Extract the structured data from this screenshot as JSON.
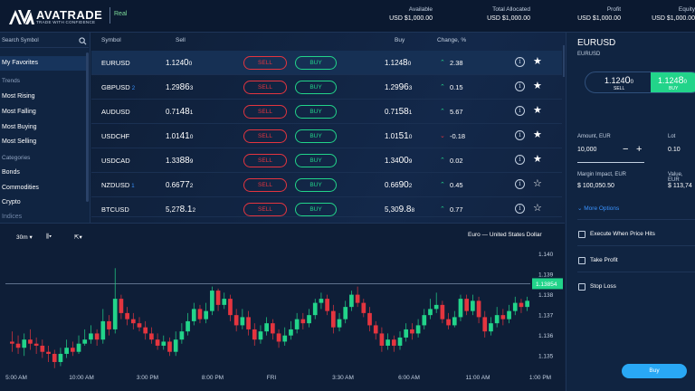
{
  "header": {
    "brand": "AVATRADE",
    "tagline": "TRADE WITH CONFIDENCE",
    "account_type": "Real",
    "stats": [
      {
        "label": "Available",
        "value": "USD $1,000.00"
      },
      {
        "label": "Total Allocated",
        "value": "USD $1,000.00"
      },
      {
        "label": "Profit",
        "value": "USD $1,000.00"
      },
      {
        "label": "Equity",
        "value": "USD $1,000.00"
      }
    ]
  },
  "sidebar": {
    "search_placeholder": "Search Symbol",
    "favorites": "My Favorites",
    "trends_heading": "Trends",
    "trends": [
      "Most Rising",
      "Most Falling",
      "Most Buying",
      "Most Selling"
    ],
    "categories_heading": "Categories",
    "categories": [
      "Bonds",
      "Commodities",
      "Crypto",
      "Indices"
    ]
  },
  "watchlist": {
    "columns": {
      "symbol": "Symbol",
      "sell": "Sell",
      "buy": "Buy",
      "change": "Change, %"
    },
    "sell_label": "SELL",
    "buy_label": "BUY",
    "rows": [
      {
        "symbol": "EURUSD",
        "badge": "",
        "sell_a": "1.124",
        "sell_b": "0",
        "sell_c": "0",
        "buy_a": "1.124",
        "buy_b": "8",
        "buy_c": "0",
        "change": "2.38",
        "dir": "up",
        "starred": true
      },
      {
        "symbol": "GBPUSD",
        "badge": "2",
        "sell_a": "1.29",
        "sell_b": "86",
        "sell_c": "3",
        "buy_a": "1.29",
        "buy_b": "96",
        "buy_c": "3",
        "change": "0.15",
        "dir": "up",
        "starred": true
      },
      {
        "symbol": "AUDUSD",
        "badge": "",
        "sell_a": "0.71",
        "sell_b": "48",
        "sell_c": "1",
        "buy_a": "0.71",
        "buy_b": "58",
        "buy_c": "1",
        "change": "5.67",
        "dir": "up",
        "starred": true
      },
      {
        "symbol": "USDCHF",
        "badge": "",
        "sell_a": "1.01",
        "sell_b": "41",
        "sell_c": "0",
        "buy_a": "1.01",
        "buy_b": "51",
        "buy_c": "0",
        "change": "-0.18",
        "dir": "down",
        "starred": true
      },
      {
        "symbol": "USDCAD",
        "badge": "",
        "sell_a": "1.33",
        "sell_b": "88",
        "sell_c": "9",
        "buy_a": "1.34",
        "buy_b": "00",
        "buy_c": "9",
        "change": "0.02",
        "dir": "up",
        "starred": true
      },
      {
        "symbol": "NZDUSD",
        "badge": "1",
        "sell_a": "0.66",
        "sell_b": "77",
        "sell_c": "2",
        "buy_a": "0.66",
        "buy_b": "90",
        "buy_c": "2",
        "change": "0.45",
        "dir": "up",
        "starred": false
      },
      {
        "symbol": "BTCUSD",
        "badge": "",
        "sell_a": "5,27",
        "sell_b": "8.1",
        "sell_c": "2",
        "buy_a": "5,30",
        "buy_b": "9.8",
        "buy_c": "8",
        "change": "0.77",
        "dir": "up",
        "starred": false
      }
    ]
  },
  "chart": {
    "timeframe": "30m",
    "title": "Euro — United States Dollar",
    "current_price": "1.13854",
    "colors": {
      "up": "#22d48a",
      "down": "#e4353f"
    }
  },
  "chart_data": {
    "type": "candlestick",
    "title": "Euro — United States Dollar",
    "x_ticks": [
      "5:00 AM",
      "10:00 AM",
      "3:00 PM",
      "8:00 PM",
      "FRI",
      "3:30 AM",
      "6:00 AM",
      "11:00 AM",
      "1:00 PM"
    ],
    "y_ticks": [
      "1.140",
      "1.139",
      "1.138",
      "1.137",
      "1.136",
      "1.135"
    ],
    "ylim": [
      1.1343,
      1.1406
    ],
    "last_price": 1.13854,
    "candles": [
      {
        "o": 1.1357,
        "c": 1.1356,
        "h": 1.1362,
        "l": 1.1352
      },
      {
        "o": 1.1356,
        "c": 1.1354,
        "h": 1.136,
        "l": 1.1351
      },
      {
        "o": 1.1354,
        "c": 1.1358,
        "h": 1.1361,
        "l": 1.135
      },
      {
        "o": 1.1358,
        "c": 1.1356,
        "h": 1.1363,
        "l": 1.1353
      },
      {
        "o": 1.1356,
        "c": 1.1355,
        "h": 1.1359,
        "l": 1.1351
      },
      {
        "o": 1.1355,
        "c": 1.1352,
        "h": 1.1358,
        "l": 1.1349
      },
      {
        "o": 1.1352,
        "c": 1.1351,
        "h": 1.1355,
        "l": 1.1347
      },
      {
        "o": 1.1351,
        "c": 1.1347,
        "h": 1.1353,
        "l": 1.1344
      },
      {
        "o": 1.1347,
        "c": 1.1351,
        "h": 1.1354,
        "l": 1.1345
      },
      {
        "o": 1.1351,
        "c": 1.1354,
        "h": 1.1358,
        "l": 1.1349
      },
      {
        "o": 1.1354,
        "c": 1.1352,
        "h": 1.1357,
        "l": 1.135
      },
      {
        "o": 1.1352,
        "c": 1.1356,
        "h": 1.136,
        "l": 1.1351
      },
      {
        "o": 1.1356,
        "c": 1.1358,
        "h": 1.1363,
        "l": 1.1355
      },
      {
        "o": 1.1358,
        "c": 1.1361,
        "h": 1.1365,
        "l": 1.1356
      },
      {
        "o": 1.1361,
        "c": 1.1358,
        "h": 1.1363,
        "l": 1.1355
      },
      {
        "o": 1.1358,
        "c": 1.1367,
        "h": 1.1373,
        "l": 1.1356
      },
      {
        "o": 1.1367,
        "c": 1.1363,
        "h": 1.137,
        "l": 1.136
      },
      {
        "o": 1.1363,
        "c": 1.1378,
        "h": 1.1393,
        "l": 1.1361
      },
      {
        "o": 1.1378,
        "c": 1.1371,
        "h": 1.138,
        "l": 1.1368
      },
      {
        "o": 1.1371,
        "c": 1.1368,
        "h": 1.1374,
        "l": 1.1365
      },
      {
        "o": 1.1368,
        "c": 1.1366,
        "h": 1.1371,
        "l": 1.1363
      },
      {
        "o": 1.1366,
        "c": 1.1364,
        "h": 1.1369,
        "l": 1.1362
      },
      {
        "o": 1.1364,
        "c": 1.1361,
        "h": 1.1367,
        "l": 1.1358
      },
      {
        "o": 1.1361,
        "c": 1.1358,
        "h": 1.1364,
        "l": 1.1356
      },
      {
        "o": 1.1358,
        "c": 1.1355,
        "h": 1.1361,
        "l": 1.1353
      },
      {
        "o": 1.1355,
        "c": 1.1357,
        "h": 1.136,
        "l": 1.1353
      },
      {
        "o": 1.1357,
        "c": 1.1352,
        "h": 1.1359,
        "l": 1.135
      },
      {
        "o": 1.1352,
        "c": 1.1358,
        "h": 1.1362,
        "l": 1.135
      },
      {
        "o": 1.1358,
        "c": 1.1362,
        "h": 1.1366,
        "l": 1.1356
      },
      {
        "o": 1.1362,
        "c": 1.1367,
        "h": 1.1371,
        "l": 1.136
      },
      {
        "o": 1.1367,
        "c": 1.1373,
        "h": 1.1376,
        "l": 1.1365
      },
      {
        "o": 1.1373,
        "c": 1.1368,
        "h": 1.1375,
        "l": 1.1366
      },
      {
        "o": 1.1368,
        "c": 1.1372,
        "h": 1.1376,
        "l": 1.1366
      },
      {
        "o": 1.1372,
        "c": 1.1382,
        "h": 1.1384,
        "l": 1.137
      },
      {
        "o": 1.1382,
        "c": 1.1375,
        "h": 1.1383,
        "l": 1.1372
      },
      {
        "o": 1.1375,
        "c": 1.1378,
        "h": 1.1381,
        "l": 1.1373
      },
      {
        "o": 1.1378,
        "c": 1.137,
        "h": 1.138,
        "l": 1.1367
      },
      {
        "o": 1.137,
        "c": 1.1365,
        "h": 1.1373,
        "l": 1.1362
      },
      {
        "o": 1.1365,
        "c": 1.1369,
        "h": 1.1373,
        "l": 1.1363
      },
      {
        "o": 1.1369,
        "c": 1.1363,
        "h": 1.1372,
        "l": 1.136
      },
      {
        "o": 1.1363,
        "c": 1.1358,
        "h": 1.1366,
        "l": 1.1355
      },
      {
        "o": 1.1358,
        "c": 1.1362,
        "h": 1.1365,
        "l": 1.1356
      },
      {
        "o": 1.1362,
        "c": 1.1366,
        "h": 1.1369,
        "l": 1.136
      },
      {
        "o": 1.1366,
        "c": 1.1361,
        "h": 1.1368,
        "l": 1.1358
      },
      {
        "o": 1.1361,
        "c": 1.1357,
        "h": 1.1363,
        "l": 1.1354
      },
      {
        "o": 1.1357,
        "c": 1.136,
        "h": 1.1364,
        "l": 1.1355
      },
      {
        "o": 1.136,
        "c": 1.1363,
        "h": 1.1367,
        "l": 1.1358
      },
      {
        "o": 1.1363,
        "c": 1.1368,
        "h": 1.1371,
        "l": 1.1361
      },
      {
        "o": 1.1368,
        "c": 1.1366,
        "h": 1.1371,
        "l": 1.1363
      },
      {
        "o": 1.1366,
        "c": 1.137,
        "h": 1.1373,
        "l": 1.1364
      },
      {
        "o": 1.137,
        "c": 1.1376,
        "h": 1.1378,
        "l": 1.1368
      },
      {
        "o": 1.1376,
        "c": 1.1378,
        "h": 1.1381,
        "l": 1.1373
      },
      {
        "o": 1.1378,
        "c": 1.1372,
        "h": 1.138,
        "l": 1.137
      },
      {
        "o": 1.1372,
        "c": 1.1364,
        "h": 1.1375,
        "l": 1.1361
      },
      {
        "o": 1.1364,
        "c": 1.1368,
        "h": 1.1371,
        "l": 1.1362
      },
      {
        "o": 1.1368,
        "c": 1.1374,
        "h": 1.1377,
        "l": 1.1366
      },
      {
        "o": 1.1374,
        "c": 1.138,
        "h": 1.1382,
        "l": 1.1372
      },
      {
        "o": 1.138,
        "c": 1.1376,
        "h": 1.1384,
        "l": 1.1374
      },
      {
        "o": 1.1376,
        "c": 1.1371,
        "h": 1.1378,
        "l": 1.1369
      },
      {
        "o": 1.1371,
        "c": 1.1365,
        "h": 1.1374,
        "l": 1.1362
      },
      {
        "o": 1.1365,
        "c": 1.1361,
        "h": 1.1367,
        "l": 1.1358
      },
      {
        "o": 1.1361,
        "c": 1.1355,
        "h": 1.1364,
        "l": 1.1352
      },
      {
        "o": 1.1355,
        "c": 1.1358,
        "h": 1.1361,
        "l": 1.1353
      },
      {
        "o": 1.1358,
        "c": 1.1355,
        "h": 1.136,
        "l": 1.1352
      },
      {
        "o": 1.1355,
        "c": 1.1359,
        "h": 1.1362,
        "l": 1.1353
      },
      {
        "o": 1.1359,
        "c": 1.1363,
        "h": 1.1366,
        "l": 1.1357
      },
      {
        "o": 1.1363,
        "c": 1.1361,
        "h": 1.1366,
        "l": 1.1358
      },
      {
        "o": 1.1361,
        "c": 1.1365,
        "h": 1.1368,
        "l": 1.1359
      },
      {
        "o": 1.1365,
        "c": 1.137,
        "h": 1.1373,
        "l": 1.1363
      },
      {
        "o": 1.137,
        "c": 1.1373,
        "h": 1.1378,
        "l": 1.1368
      },
      {
        "o": 1.1373,
        "c": 1.1375,
        "h": 1.1381,
        "l": 1.1371
      },
      {
        "o": 1.1375,
        "c": 1.1368,
        "h": 1.1377,
        "l": 1.1366
      },
      {
        "o": 1.1368,
        "c": 1.1365,
        "h": 1.1371,
        "l": 1.1363
      },
      {
        "o": 1.1365,
        "c": 1.1369,
        "h": 1.1372,
        "l": 1.1364
      },
      {
        "o": 1.1369,
        "c": 1.1378,
        "h": 1.138,
        "l": 1.1367
      },
      {
        "o": 1.1378,
        "c": 1.1372,
        "h": 1.138,
        "l": 1.137
      },
      {
        "o": 1.1372,
        "c": 1.1377,
        "h": 1.138,
        "l": 1.137
      },
      {
        "o": 1.1377,
        "c": 1.1369,
        "h": 1.1379,
        "l": 1.1366
      },
      {
        "o": 1.1369,
        "c": 1.1362,
        "h": 1.1372,
        "l": 1.1359
      },
      {
        "o": 1.1362,
        "c": 1.1366,
        "h": 1.1369,
        "l": 1.136
      },
      {
        "o": 1.1366,
        "c": 1.137,
        "h": 1.1374,
        "l": 1.1364
      },
      {
        "o": 1.137,
        "c": 1.1368,
        "h": 1.1373,
        "l": 1.1365
      },
      {
        "o": 1.1368,
        "c": 1.1372,
        "h": 1.1375,
        "l": 1.1366
      },
      {
        "o": 1.1372,
        "c": 1.1376,
        "h": 1.1379,
        "l": 1.137
      },
      {
        "o": 1.1376,
        "c": 1.1374,
        "h": 1.1378,
        "l": 1.1371
      },
      {
        "o": 1.1374,
        "c": 1.1377,
        "h": 1.1379,
        "l": 1.1372
      }
    ]
  },
  "order_panel": {
    "symbol": "EURUSD",
    "sub": "EURUSD",
    "sell": {
      "a": "1.124",
      "b": "0",
      "c": "0",
      "label": "SELL"
    },
    "buy": {
      "a": "1.124",
      "b": "8",
      "c": "0",
      "label": "BUY"
    },
    "amount_label": "Amount, EUR",
    "amount_value": "10,000",
    "lot_label": "Lot",
    "lot_value": "0.10",
    "margin_label": "Margin Impact, EUR",
    "margin_value": "$ 100,050.50",
    "value_label": "Value, EUR",
    "value_value": "$ 113,74",
    "more_options": "More Options",
    "options": [
      "Execute When Price Hits",
      "Take Profit",
      "Stop Loss"
    ],
    "submit": "Buy"
  }
}
